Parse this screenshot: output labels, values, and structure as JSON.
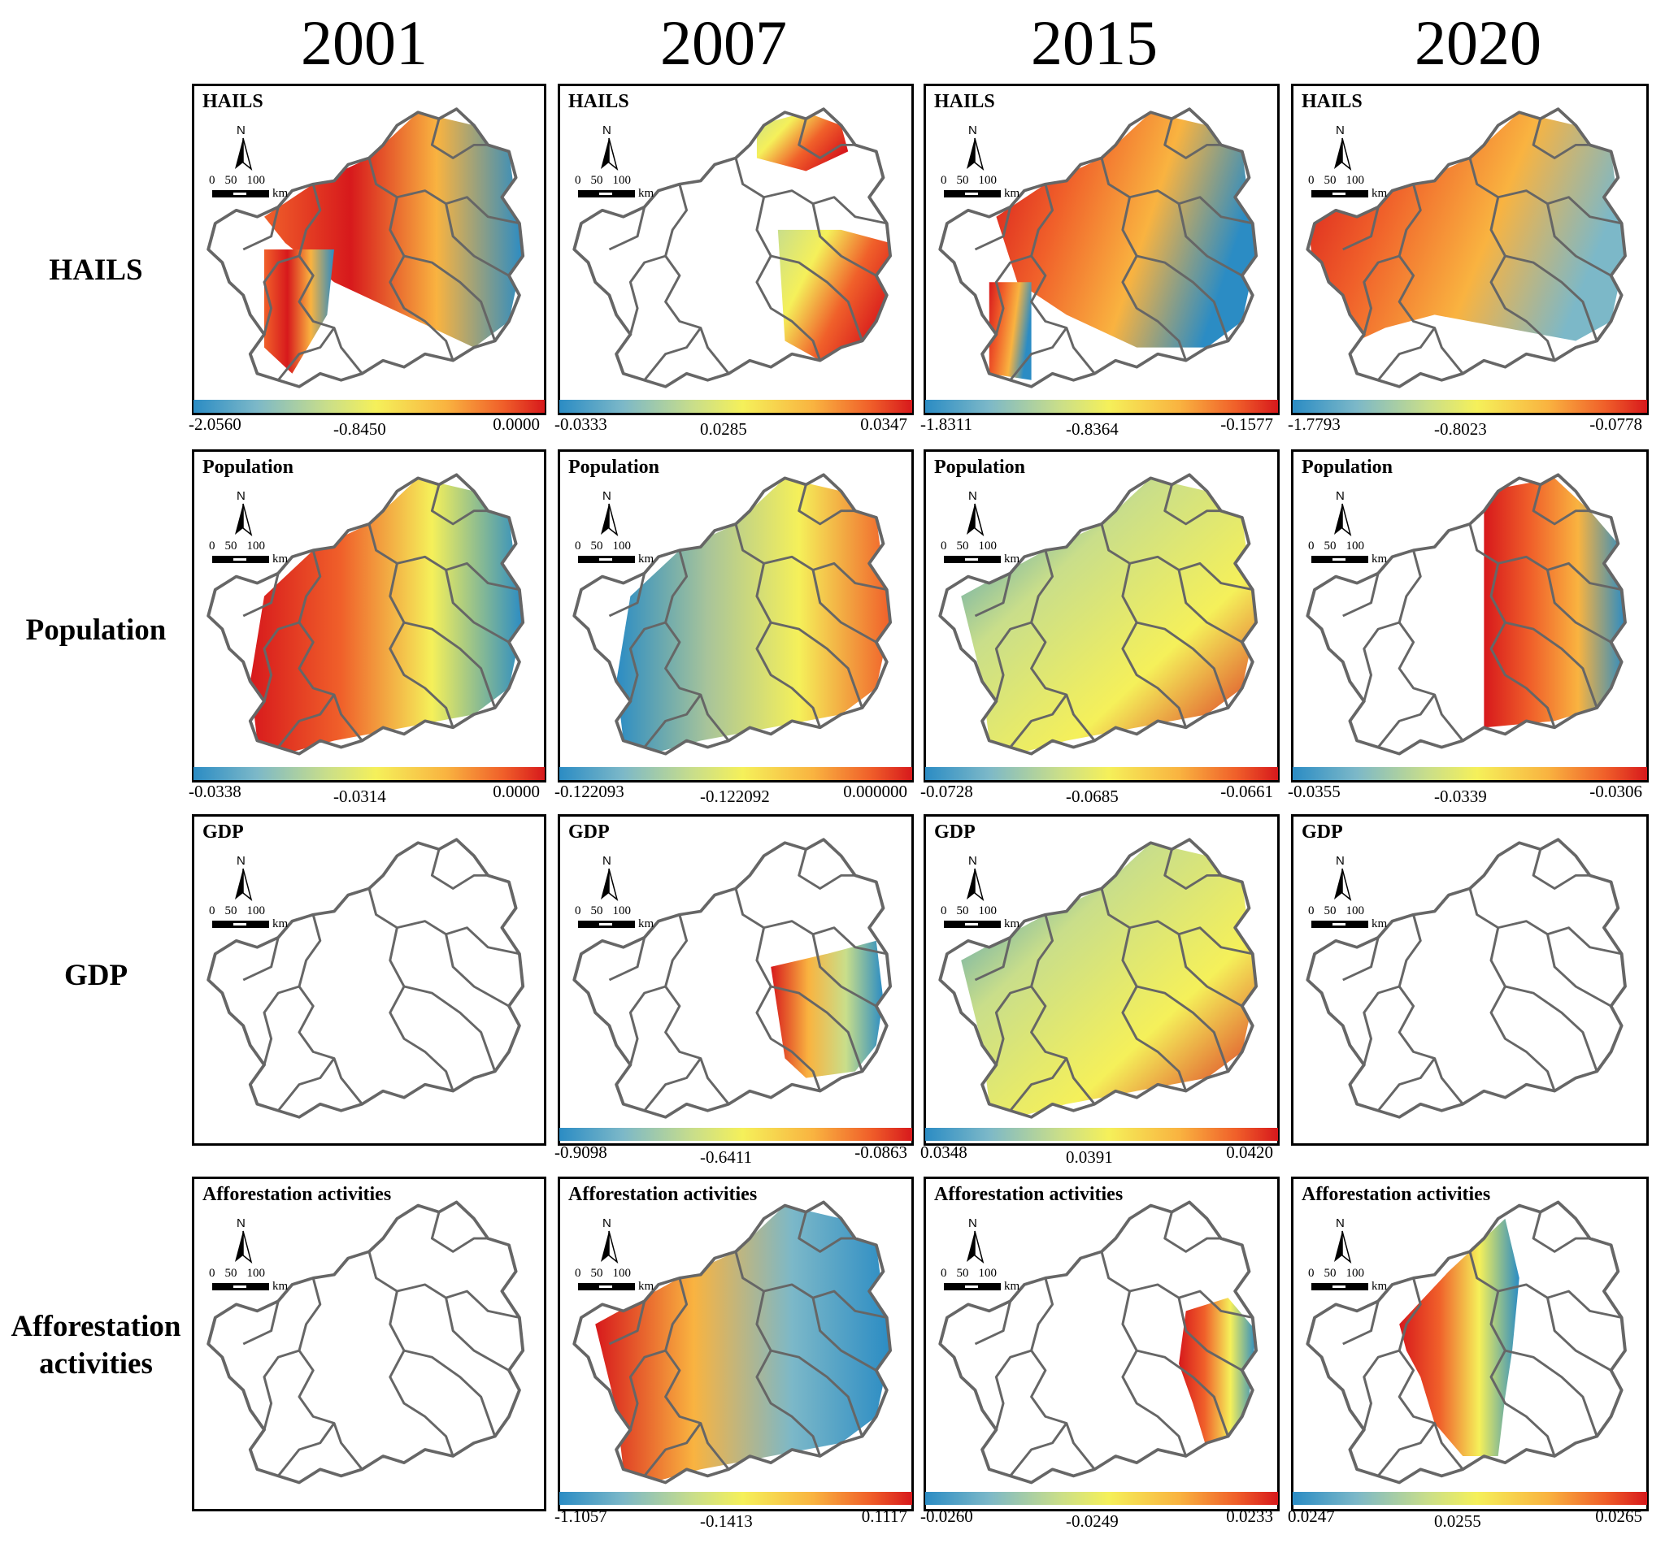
{
  "years": [
    "2001",
    "2007",
    "2015",
    "2020"
  ],
  "row_labels": [
    [
      "HAILS"
    ],
    [
      "Population"
    ],
    [
      "GDP"
    ],
    [
      "Afforestation",
      "activities"
    ]
  ],
  "north_label": "N",
  "scale_bar": {
    "ticks": [
      "0",
      "50",
      "100"
    ],
    "unit": "km"
  },
  "panels": [
    {
      "title": "HAILS",
      "legend": [
        "-2.0560",
        "-0.8450",
        "0.0000"
      ]
    },
    {
      "title": "HAILS",
      "legend": [
        "-0.0333",
        "0.0285",
        "0.0347"
      ]
    },
    {
      "title": "HAILS",
      "legend": [
        "-1.8311",
        "-0.8364",
        "-0.1577"
      ]
    },
    {
      "title": "HAILS",
      "legend": [
        "-1.7793",
        "-0.8023",
        "-0.0778"
      ]
    },
    {
      "title": "Population",
      "legend": [
        "-0.0338",
        "-0.0314",
        "0.0000"
      ]
    },
    {
      "title": "Population",
      "legend": [
        "-0.122093",
        "-0.122092",
        "0.000000"
      ]
    },
    {
      "title": "Population",
      "legend": [
        "-0.0728",
        "-0.0685",
        "-0.0661"
      ]
    },
    {
      "title": "Population",
      "legend": [
        "-0.0355",
        "-0.0339",
        "-0.0306"
      ]
    },
    {
      "title": "GDP",
      "legend": []
    },
    {
      "title": "GDP",
      "legend": [
        "-0.9098",
        "-0.6411",
        "-0.0863"
      ]
    },
    {
      "title": "GDP",
      "legend": [
        "0.0348",
        "0.0391",
        "0.0420"
      ]
    },
    {
      "title": "GDP",
      "legend": []
    },
    {
      "title": "Afforestation activities",
      "legend": []
    },
    {
      "title": "Afforestation activities",
      "legend": [
        "-1.1057",
        "-0.1413",
        "0.1117"
      ]
    },
    {
      "title": "Afforestation activities",
      "legend": [
        "-0.0260",
        "-0.0249",
        "0.0233"
      ]
    },
    {
      "title": "Afforestation activities",
      "legend": [
        "0.0247",
        "0.0255",
        "0.0265"
      ]
    }
  ],
  "colors": {
    "low": "#2b8cc4",
    "mid": "#f5f05a",
    "high": "#d7191c",
    "boundary": "#666666"
  }
}
